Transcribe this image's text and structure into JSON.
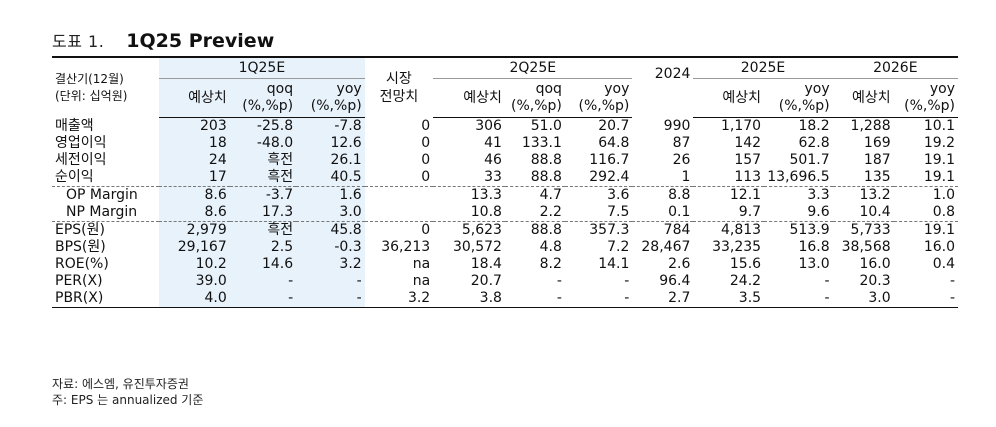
{
  "title": {
    "prefix": "도표 1.",
    "main": "1Q25 Preview"
  },
  "header": {
    "row_label_top": "결산기(12월)",
    "row_label_bottom": "(단위: 십억원)",
    "groups": {
      "q1": "1Q25E",
      "q2": "2Q25E",
      "y25": "2025E",
      "y26": "2026E"
    },
    "market": [
      "시장",
      "전망치"
    ],
    "estimate": "예상치",
    "qoq": [
      "qoq",
      "(%,%p)"
    ],
    "yoy": [
      "yoy",
      "(%,%p)"
    ],
    "y2024": "2024"
  },
  "rows": [
    {
      "label": "매출액",
      "cells": [
        "203",
        "-25.8",
        "-7.8",
        "0",
        "306",
        "51.0",
        "20.7",
        "990",
        "1,170",
        "18.2",
        "1,288",
        "10.1"
      ]
    },
    {
      "label": "영업이익",
      "cells": [
        "18",
        "-48.0",
        "12.6",
        "0",
        "41",
        "133.1",
        "64.8",
        "87",
        "142",
        "62.8",
        "169",
        "19.2"
      ]
    },
    {
      "label": "세전이익",
      "cells": [
        "24",
        "흑전",
        "26.1",
        "0",
        "46",
        "88.8",
        "116.7",
        "26",
        "157",
        "501.7",
        "187",
        "19.1"
      ]
    },
    {
      "label": "순이익",
      "cells": [
        "17",
        "흑전",
        "40.5",
        "0",
        "33",
        "88.8",
        "292.4",
        "1",
        "113",
        "13,696.5",
        "135",
        "19.1"
      ]
    },
    {
      "label": "OP Margin",
      "cells": [
        "8.6",
        "-3.7",
        "1.6",
        "",
        "13.3",
        "4.7",
        "3.6",
        "8.8",
        "12.1",
        "3.3",
        "13.2",
        "1.0"
      ]
    },
    {
      "label": "NP Margin",
      "cells": [
        "8.6",
        "17.3",
        "3.0",
        "",
        "10.8",
        "2.2",
        "7.5",
        "0.1",
        "9.7",
        "9.6",
        "10.4",
        "0.8"
      ]
    },
    {
      "label": "EPS(원)",
      "cells": [
        "2,979",
        "흑전",
        "45.8",
        "0",
        "5,623",
        "88.8",
        "357.3",
        "784",
        "4,813",
        "513.9",
        "5,733",
        "19.1"
      ]
    },
    {
      "label": "BPS(원)",
      "cells": [
        "29,167",
        "2.5",
        "-0.3",
        "36,213",
        "30,572",
        "4.8",
        "7.2",
        "28,467",
        "33,235",
        "16.8",
        "38,568",
        "16.0"
      ]
    },
    {
      "label": "ROE(%)",
      "cells": [
        "10.2",
        "14.6",
        "3.2",
        "na",
        "18.4",
        "8.2",
        "14.1",
        "2.6",
        "15.6",
        "13.0",
        "16.0",
        "0.4"
      ]
    },
    {
      "label": "PER(X)",
      "cells": [
        "39.0",
        "-",
        "-",
        "na",
        "20.7",
        "-",
        "-",
        "96.4",
        "24.2",
        "-",
        "20.3",
        "-"
      ]
    },
    {
      "label": "PBR(X)",
      "cells": [
        "4.0",
        "-",
        "-",
        "3.2",
        "3.8",
        "-",
        "-",
        "2.7",
        "3.5",
        "-",
        "3.0",
        "-"
      ]
    }
  ],
  "notes": [
    "자료: 에스엠, 유진투자증권",
    "주: EPS 는 annualized 기준"
  ],
  "colors": {
    "highlight": "#e8f2fb",
    "text": "#111111"
  }
}
